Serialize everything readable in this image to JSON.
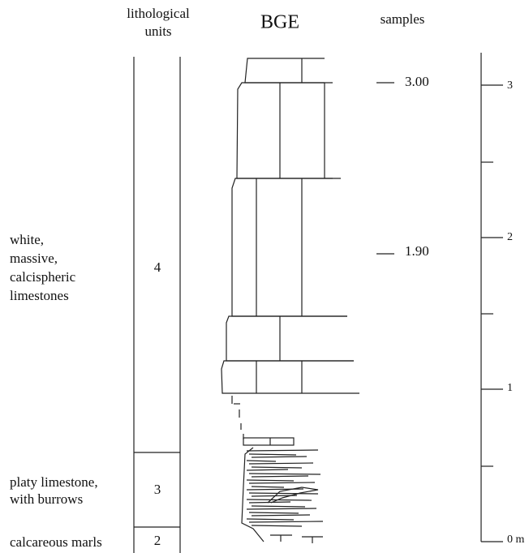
{
  "header": {
    "units": [
      "lithological",
      "units"
    ],
    "column": "BGE",
    "samples": "samples"
  },
  "units": [
    {
      "number": "4",
      "description": [
        "white,",
        "massive,",
        "calcispheric",
        "limestones"
      ]
    },
    {
      "number": "3",
      "description": [
        "platy limestone,",
        "with burrows"
      ]
    },
    {
      "number": "2",
      "description": [
        "calcareous marls"
      ]
    }
  ],
  "samples": [
    "3.00",
    "1.90"
  ],
  "scale": [
    "3",
    "2",
    "1",
    "0 m"
  ]
}
